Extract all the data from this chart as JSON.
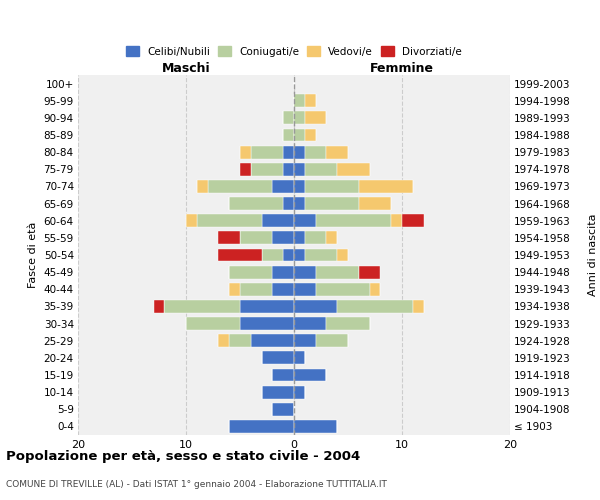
{
  "age_groups": [
    "100+",
    "95-99",
    "90-94",
    "85-89",
    "80-84",
    "75-79",
    "70-74",
    "65-69",
    "60-64",
    "55-59",
    "50-54",
    "45-49",
    "40-44",
    "35-39",
    "30-34",
    "25-29",
    "20-24",
    "15-19",
    "10-14",
    "5-9",
    "0-4"
  ],
  "birth_years": [
    "≤ 1903",
    "1904-1908",
    "1909-1913",
    "1914-1918",
    "1919-1923",
    "1924-1928",
    "1929-1933",
    "1934-1938",
    "1939-1943",
    "1944-1948",
    "1949-1953",
    "1954-1958",
    "1959-1963",
    "1964-1968",
    "1969-1973",
    "1974-1978",
    "1979-1983",
    "1984-1988",
    "1989-1993",
    "1994-1998",
    "1999-2003"
  ],
  "male_celibi": [
    0,
    0,
    0,
    0,
    1,
    1,
    2,
    1,
    3,
    2,
    1,
    2,
    2,
    5,
    5,
    4,
    3,
    2,
    3,
    2,
    6
  ],
  "male_coniugati": [
    0,
    0,
    1,
    1,
    3,
    3,
    6,
    5,
    6,
    3,
    2,
    4,
    3,
    7,
    5,
    2,
    0,
    0,
    0,
    0,
    0
  ],
  "male_vedovi": [
    0,
    0,
    0,
    0,
    1,
    0,
    1,
    0,
    1,
    0,
    0,
    0,
    1,
    0,
    0,
    1,
    0,
    0,
    0,
    0,
    0
  ],
  "male_divorziati": [
    0,
    0,
    0,
    0,
    0,
    1,
    0,
    0,
    0,
    2,
    4,
    0,
    0,
    1,
    0,
    0,
    0,
    0,
    0,
    0,
    0
  ],
  "female_celibi": [
    0,
    0,
    0,
    0,
    1,
    1,
    1,
    1,
    2,
    1,
    1,
    2,
    2,
    4,
    3,
    2,
    1,
    3,
    1,
    0,
    4
  ],
  "female_coniugati": [
    0,
    1,
    1,
    1,
    2,
    3,
    5,
    5,
    7,
    2,
    3,
    4,
    5,
    7,
    4,
    3,
    0,
    0,
    0,
    0,
    0
  ],
  "female_vedovi": [
    0,
    1,
    2,
    1,
    2,
    3,
    5,
    3,
    1,
    1,
    1,
    0,
    1,
    1,
    0,
    0,
    0,
    0,
    0,
    0,
    0
  ],
  "female_divorziati": [
    0,
    0,
    0,
    0,
    0,
    0,
    0,
    0,
    2,
    0,
    0,
    2,
    0,
    0,
    0,
    0,
    0,
    0,
    0,
    0,
    0
  ],
  "color_celibi": "#4472c4",
  "color_coniugati": "#b8cfa0",
  "color_vedovi": "#f5c86e",
  "color_divorziati": "#cc2222",
  "title": "Popolazione per età, sesso e stato civile - 2004",
  "subtitle": "COMUNE DI TREVILLE (AL) - Dati ISTAT 1° gennaio 2004 - Elaborazione TUTTITALIA.IT",
  "xlabel_left": "Maschi",
  "xlabel_right": "Femmine",
  "ylabel_left": "Fasce di età",
  "ylabel_right": "Anni di nascita",
  "xlim": 20,
  "bg_color": "#f0f0f0",
  "grid_color": "#cccccc"
}
